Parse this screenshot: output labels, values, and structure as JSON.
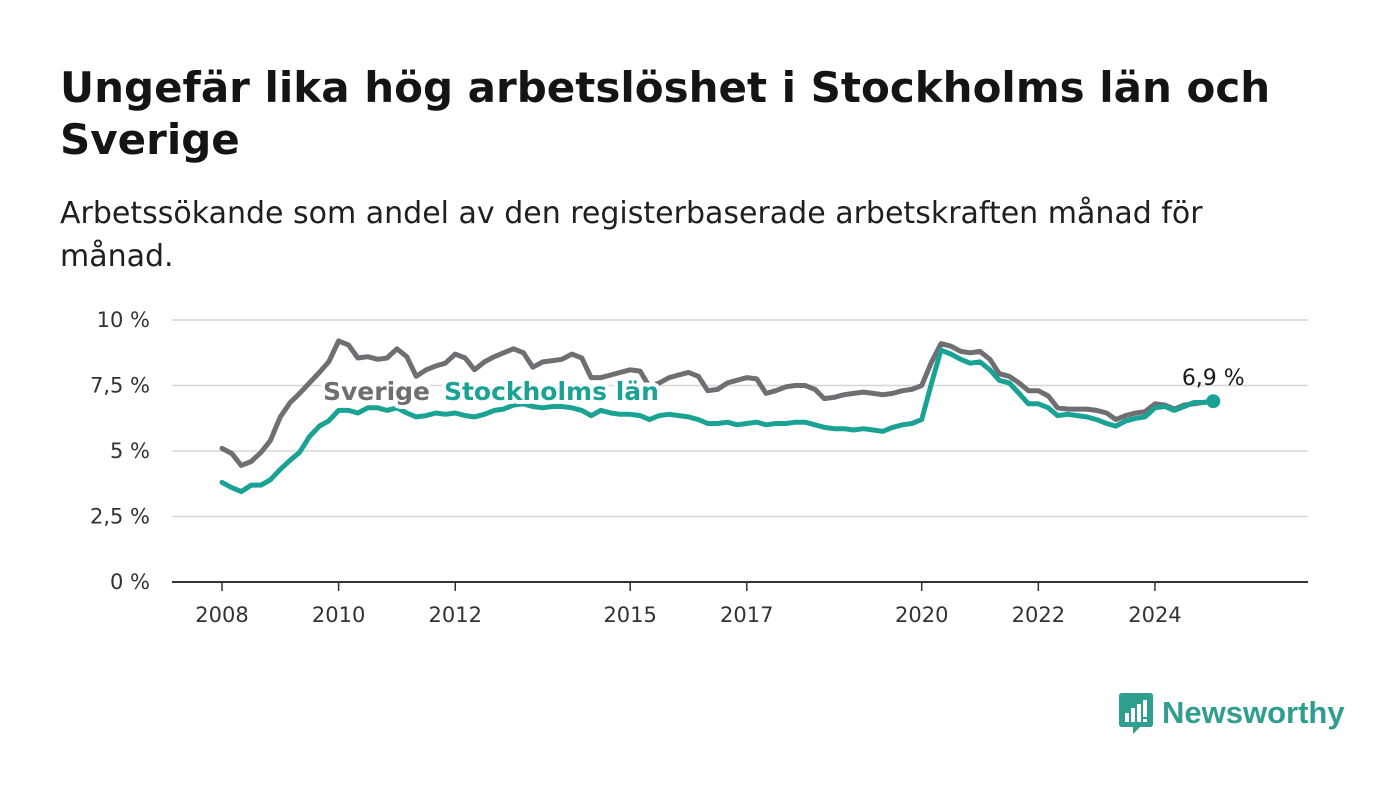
{
  "header": {
    "title": "Ungefär lika hög arbetslöshet i Stockholms län och Sverige",
    "subtitle": "Arbetssökande som andel av den registerbaserade arbetskraften månad för månad."
  },
  "chart_data": {
    "type": "line",
    "title": "Ungefär lika hög arbetslöshet i Stockholms län och Sverige",
    "subtitle": "Arbetssökande som andel av den registerbaserade arbetskraften månad för månad.",
    "xlabel": "",
    "ylabel": "",
    "xlim": [
      2008.0,
      2025.75
    ],
    "ylim": [
      0,
      10
    ],
    "y_ticks": [
      {
        "value": 0,
        "label": "0 %"
      },
      {
        "value": 2.5,
        "label": "2,5 %"
      },
      {
        "value": 5,
        "label": "5 %"
      },
      {
        "value": 7.5,
        "label": "7,5 %"
      },
      {
        "value": 10,
        "label": "10 %"
      }
    ],
    "x_ticks": [
      {
        "value": 2008,
        "label": "2008"
      },
      {
        "value": 2010,
        "label": "2010"
      },
      {
        "value": 2012,
        "label": "2012"
      },
      {
        "value": 2015,
        "label": "2015"
      },
      {
        "value": 2017,
        "label": "2017"
      },
      {
        "value": 2020,
        "label": "2020"
      },
      {
        "value": 2022,
        "label": "2022"
      },
      {
        "value": 2024,
        "label": "2024"
      }
    ],
    "grid": "horizontal",
    "legend": "direct labels",
    "series": [
      {
        "name": "Sverige",
        "color": "#6e6e73",
        "label_at": [
          2010.65,
          6.95
        ],
        "points": [
          [
            2008.0,
            5.1
          ],
          [
            2008.17,
            4.9
          ],
          [
            2008.33,
            4.45
          ],
          [
            2008.5,
            4.6
          ],
          [
            2008.67,
            4.95
          ],
          [
            2008.83,
            5.4
          ],
          [
            2009.0,
            6.3
          ],
          [
            2009.17,
            6.85
          ],
          [
            2009.33,
            7.2
          ],
          [
            2009.5,
            7.6
          ],
          [
            2009.67,
            8.0
          ],
          [
            2009.83,
            8.4
          ],
          [
            2010.0,
            9.2
          ],
          [
            2010.17,
            9.05
          ],
          [
            2010.33,
            8.55
          ],
          [
            2010.5,
            8.6
          ],
          [
            2010.67,
            8.5
          ],
          [
            2010.83,
            8.55
          ],
          [
            2011.0,
            8.9
          ],
          [
            2011.17,
            8.6
          ],
          [
            2011.33,
            7.85
          ],
          [
            2011.5,
            8.1
          ],
          [
            2011.67,
            8.25
          ],
          [
            2011.83,
            8.35
          ],
          [
            2012.0,
            8.7
          ],
          [
            2012.17,
            8.55
          ],
          [
            2012.33,
            8.1
          ],
          [
            2012.5,
            8.4
          ],
          [
            2012.67,
            8.6
          ],
          [
            2012.83,
            8.75
          ],
          [
            2013.0,
            8.9
          ],
          [
            2013.17,
            8.75
          ],
          [
            2013.33,
            8.2
          ],
          [
            2013.5,
            8.4
          ],
          [
            2013.67,
            8.45
          ],
          [
            2013.83,
            8.5
          ],
          [
            2014.0,
            8.7
          ],
          [
            2014.17,
            8.55
          ],
          [
            2014.33,
            7.8
          ],
          [
            2014.5,
            7.8
          ],
          [
            2014.67,
            7.9
          ],
          [
            2014.83,
            8.0
          ],
          [
            2015.0,
            8.1
          ],
          [
            2015.17,
            8.05
          ],
          [
            2015.33,
            7.45
          ],
          [
            2015.5,
            7.6
          ],
          [
            2015.67,
            7.8
          ],
          [
            2015.83,
            7.9
          ],
          [
            2016.0,
            8.0
          ],
          [
            2016.17,
            7.85
          ],
          [
            2016.33,
            7.3
          ],
          [
            2016.5,
            7.35
          ],
          [
            2016.67,
            7.6
          ],
          [
            2016.83,
            7.7
          ],
          [
            2017.0,
            7.8
          ],
          [
            2017.17,
            7.75
          ],
          [
            2017.33,
            7.2
          ],
          [
            2017.5,
            7.3
          ],
          [
            2017.67,
            7.45
          ],
          [
            2017.83,
            7.5
          ],
          [
            2018.0,
            7.5
          ],
          [
            2018.17,
            7.35
          ],
          [
            2018.33,
            7.0
          ],
          [
            2018.5,
            7.05
          ],
          [
            2018.67,
            7.15
          ],
          [
            2018.83,
            7.2
          ],
          [
            2019.0,
            7.25
          ],
          [
            2019.17,
            7.2
          ],
          [
            2019.33,
            7.15
          ],
          [
            2019.5,
            7.2
          ],
          [
            2019.67,
            7.3
          ],
          [
            2019.83,
            7.35
          ],
          [
            2020.0,
            7.5
          ],
          [
            2020.17,
            8.4
          ],
          [
            2020.33,
            9.1
          ],
          [
            2020.5,
            9.0
          ],
          [
            2020.67,
            8.8
          ],
          [
            2020.83,
            8.75
          ],
          [
            2021.0,
            8.8
          ],
          [
            2021.17,
            8.5
          ],
          [
            2021.33,
            7.95
          ],
          [
            2021.5,
            7.85
          ],
          [
            2021.67,
            7.6
          ],
          [
            2021.83,
            7.3
          ],
          [
            2022.0,
            7.3
          ],
          [
            2022.17,
            7.1
          ],
          [
            2022.33,
            6.65
          ],
          [
            2022.5,
            6.6
          ],
          [
            2022.67,
            6.6
          ],
          [
            2022.83,
            6.6
          ],
          [
            2023.0,
            6.55
          ],
          [
            2023.17,
            6.45
          ],
          [
            2023.33,
            6.2
          ],
          [
            2023.5,
            6.35
          ],
          [
            2023.67,
            6.45
          ],
          [
            2023.83,
            6.5
          ],
          [
            2024.0,
            6.8
          ],
          [
            2024.17,
            6.75
          ],
          [
            2024.33,
            6.6
          ],
          [
            2024.5,
            6.75
          ],
          [
            2024.67,
            6.8
          ],
          [
            2024.83,
            6.85
          ],
          [
            2025.0,
            6.9
          ]
        ]
      },
      {
        "name": "Stockholms län",
        "color": "#1aa394",
        "label_at": [
          2013.65,
          6.95
        ],
        "points": [
          [
            2008.0,
            3.8
          ],
          [
            2008.17,
            3.6
          ],
          [
            2008.33,
            3.45
          ],
          [
            2008.5,
            3.7
          ],
          [
            2008.67,
            3.7
          ],
          [
            2008.83,
            3.9
          ],
          [
            2009.0,
            4.3
          ],
          [
            2009.17,
            4.65
          ],
          [
            2009.33,
            4.95
          ],
          [
            2009.5,
            5.55
          ],
          [
            2009.67,
            5.95
          ],
          [
            2009.83,
            6.15
          ],
          [
            2010.0,
            6.55
          ],
          [
            2010.17,
            6.55
          ],
          [
            2010.33,
            6.45
          ],
          [
            2010.5,
            6.65
          ],
          [
            2010.67,
            6.65
          ],
          [
            2010.83,
            6.55
          ],
          [
            2011.0,
            6.65
          ],
          [
            2011.17,
            6.45
          ],
          [
            2011.33,
            6.3
          ],
          [
            2011.5,
            6.35
          ],
          [
            2011.67,
            6.45
          ],
          [
            2011.83,
            6.4
          ],
          [
            2012.0,
            6.45
          ],
          [
            2012.17,
            6.35
          ],
          [
            2012.33,
            6.3
          ],
          [
            2012.5,
            6.4
          ],
          [
            2012.67,
            6.55
          ],
          [
            2012.83,
            6.6
          ],
          [
            2013.0,
            6.75
          ],
          [
            2013.17,
            6.8
          ],
          [
            2013.33,
            6.7
          ],
          [
            2013.5,
            6.65
          ],
          [
            2013.67,
            6.7
          ],
          [
            2013.83,
            6.7
          ],
          [
            2014.0,
            6.65
          ],
          [
            2014.17,
            6.55
          ],
          [
            2014.33,
            6.35
          ],
          [
            2014.5,
            6.55
          ],
          [
            2014.67,
            6.45
          ],
          [
            2014.83,
            6.4
          ],
          [
            2015.0,
            6.4
          ],
          [
            2015.17,
            6.35
          ],
          [
            2015.33,
            6.2
          ],
          [
            2015.5,
            6.35
          ],
          [
            2015.67,
            6.4
          ],
          [
            2015.83,
            6.35
          ],
          [
            2016.0,
            6.3
          ],
          [
            2016.17,
            6.2
          ],
          [
            2016.33,
            6.05
          ],
          [
            2016.5,
            6.05
          ],
          [
            2016.67,
            6.1
          ],
          [
            2016.83,
            6.0
          ],
          [
            2017.0,
            6.05
          ],
          [
            2017.17,
            6.1
          ],
          [
            2017.33,
            6.0
          ],
          [
            2017.5,
            6.05
          ],
          [
            2017.67,
            6.05
          ],
          [
            2017.83,
            6.1
          ],
          [
            2018.0,
            6.1
          ],
          [
            2018.17,
            6.0
          ],
          [
            2018.33,
            5.9
          ],
          [
            2018.5,
            5.85
          ],
          [
            2018.67,
            5.85
          ],
          [
            2018.83,
            5.8
          ],
          [
            2019.0,
            5.85
          ],
          [
            2019.17,
            5.8
          ],
          [
            2019.33,
            5.75
          ],
          [
            2019.5,
            5.9
          ],
          [
            2019.67,
            6.0
          ],
          [
            2019.83,
            6.05
          ],
          [
            2020.0,
            6.2
          ],
          [
            2020.17,
            7.6
          ],
          [
            2020.33,
            8.85
          ],
          [
            2020.5,
            8.7
          ],
          [
            2020.67,
            8.5
          ],
          [
            2020.83,
            8.35
          ],
          [
            2021.0,
            8.4
          ],
          [
            2021.17,
            8.1
          ],
          [
            2021.33,
            7.7
          ],
          [
            2021.5,
            7.6
          ],
          [
            2021.67,
            7.2
          ],
          [
            2021.83,
            6.8
          ],
          [
            2022.0,
            6.8
          ],
          [
            2022.17,
            6.65
          ],
          [
            2022.33,
            6.35
          ],
          [
            2022.5,
            6.4
          ],
          [
            2022.67,
            6.35
          ],
          [
            2022.83,
            6.3
          ],
          [
            2023.0,
            6.2
          ],
          [
            2023.17,
            6.05
          ],
          [
            2023.33,
            5.95
          ],
          [
            2023.5,
            6.15
          ],
          [
            2023.67,
            6.25
          ],
          [
            2023.83,
            6.3
          ],
          [
            2024.0,
            6.65
          ],
          [
            2024.17,
            6.7
          ],
          [
            2024.33,
            6.55
          ],
          [
            2024.5,
            6.7
          ],
          [
            2024.67,
            6.85
          ],
          [
            2024.83,
            6.85
          ],
          [
            2025.0,
            6.9
          ]
        ]
      }
    ],
    "last_value_label": "6,9 %"
  },
  "branding": {
    "name": "Newsworthy",
    "color": "#2f9e8f"
  }
}
